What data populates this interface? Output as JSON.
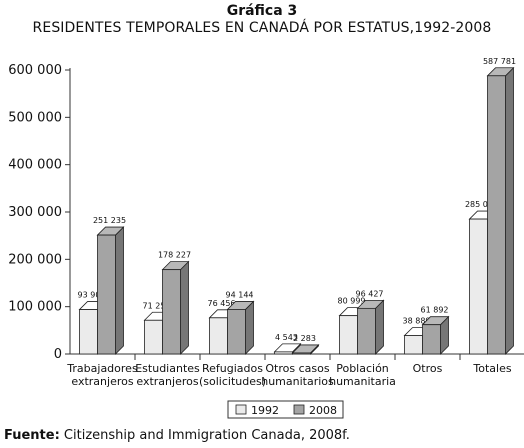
{
  "chart_data": {
    "type": "bar",
    "title": "Gráfica 3",
    "subtitle": "RESIDENTES TEMPORALES EN CANADÁ POR ESTATUS,1992-2008",
    "categories": [
      [
        "Trabajadores",
        "extranjeros"
      ],
      [
        "Estudiantes",
        "extranjeros"
      ],
      [
        "Refugiados",
        "(solicitudes)"
      ],
      [
        "Otros casos",
        "humanitarios"
      ],
      [
        "Población",
        "humanitaria"
      ],
      [
        "Otros"
      ],
      [
        "Totales"
      ]
    ],
    "series": [
      {
        "name": "1992",
        "values": [
          93902,
          71254,
          76456,
          4543,
          80999,
          38889,
          285044
        ],
        "labels": [
          "93 902",
          "71 254",
          "76 456",
          "4 543",
          "80 999",
          "38 889",
          "285 044"
        ]
      },
      {
        "name": "2008",
        "values": [
          251235,
          178227,
          94144,
          2283,
          96427,
          61892,
          587781
        ],
        "labels": [
          "251 235",
          "178 227",
          "94 144",
          "2 283",
          "96 427",
          "61 892",
          "587 781"
        ]
      }
    ],
    "ylim": [
      0,
      600000
    ],
    "yticks": [
      0,
      100000,
      200000,
      300000,
      400000,
      500000,
      600000
    ],
    "ytick_labels": [
      "0",
      "100 000",
      "200 000",
      "300 000",
      "400 000",
      "500 000",
      "600 000"
    ],
    "legend_position": "bottom-center",
    "grid": false,
    "colors": {
      "1992": "#ebebeb",
      "2008": "#a4a4a4"
    }
  },
  "source": {
    "prefix": "Fuente:",
    "text": " Citizenship and Immigration Canada, 2008f."
  }
}
